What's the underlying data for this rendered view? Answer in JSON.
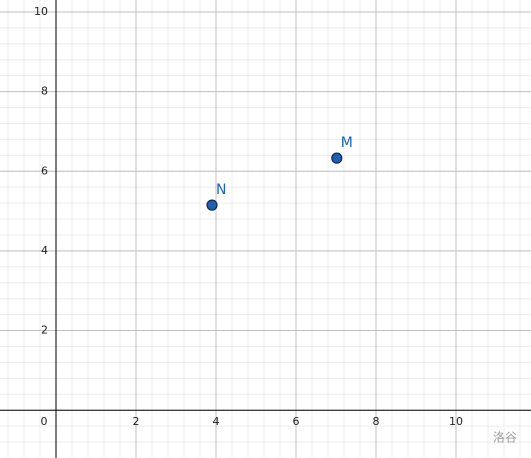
{
  "chart_data": {
    "type": "scatter",
    "x": [
      3.9,
      7.02
    ],
    "values": [
      5.15,
      6.33
    ],
    "point_labels": [
      "N",
      "M"
    ],
    "color": "#1f5fb0",
    "label_color": "#1565c0",
    "xlim": [
      -1.4,
      11.875
    ],
    "ylim": [
      -1.2,
      10.3
    ],
    "xticks": [
      0,
      2,
      4,
      6,
      8,
      10
    ],
    "yticks": [
      2,
      4,
      6,
      8,
      10
    ],
    "grid": true,
    "minor_grid_divisions": 5,
    "watermark": "洛谷"
  }
}
